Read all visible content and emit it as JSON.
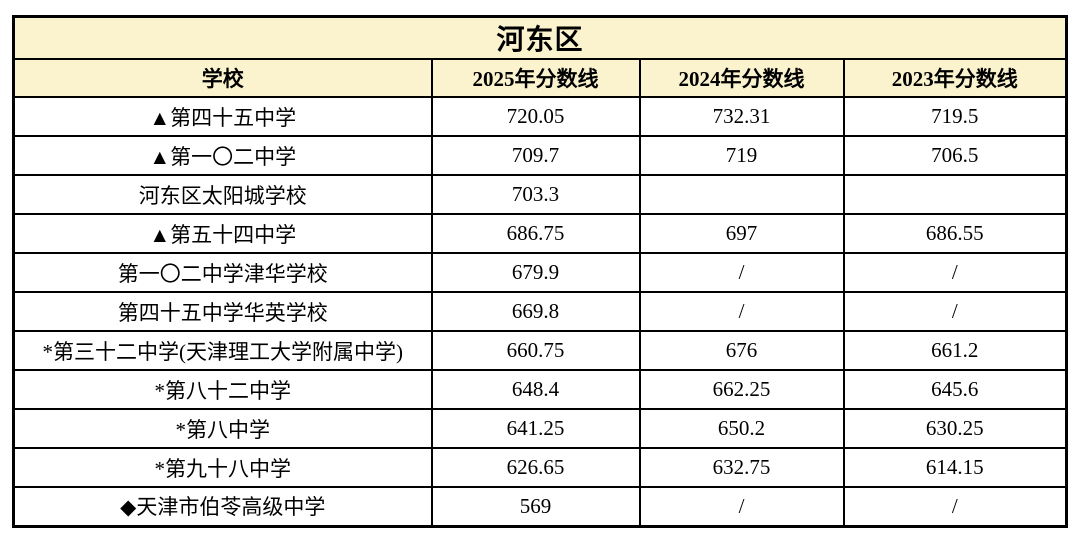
{
  "page": {
    "background": "#ffffff"
  },
  "table": {
    "title": "河东区",
    "header_bg": "#FBF3CD",
    "border_color": "#000000",
    "columns": [
      "学校",
      "2025年分数线",
      "2024年分数线",
      "2023年分数线"
    ],
    "rows": [
      {
        "school": "▲第四十五中学",
        "y2025": "720.05",
        "y2024": "732.31",
        "y2023": "719.5"
      },
      {
        "school": "▲第一〇二中学",
        "y2025": "709.7",
        "y2024": "719",
        "y2023": "706.5"
      },
      {
        "school": "河东区太阳城学校",
        "y2025": "703.3",
        "y2024": "",
        "y2023": ""
      },
      {
        "school": "▲第五十四中学",
        "y2025": "686.75",
        "y2024": "697",
        "y2023": "686.55"
      },
      {
        "school": "第一〇二中学津华学校",
        "y2025": "679.9",
        "y2024": "/",
        "y2023": "/"
      },
      {
        "school": "第四十五中学华英学校",
        "y2025": "669.8",
        "y2024": "/",
        "y2023": "/"
      },
      {
        "school": "*第三十二中学(天津理工大学附属中学)",
        "y2025": "660.75",
        "y2024": "676",
        "y2023": "661.2"
      },
      {
        "school": "*第八十二中学",
        "y2025": "648.4",
        "y2024": "662.25",
        "y2023": "645.6"
      },
      {
        "school": "*第八中学",
        "y2025": "641.25",
        "y2024": "650.2",
        "y2023": "630.25"
      },
      {
        "school": "*第九十八中学",
        "y2025": "626.65",
        "y2024": "632.75",
        "y2023": "614.15"
      },
      {
        "school": "◆天津市伯苓高级中学",
        "y2025": "569",
        "y2024": "/",
        "y2023": "/"
      }
    ]
  },
  "chart_data": {
    "type": "table",
    "title": "河东区",
    "columns": [
      "学校",
      "2025年分数线",
      "2024年分数线",
      "2023年分数线"
    ],
    "rows": [
      [
        "▲第四十五中学",
        "720.05",
        "732.31",
        "719.5"
      ],
      [
        "▲第一〇二中学",
        "709.7",
        "719",
        "706.5"
      ],
      [
        "河东区太阳城学校",
        "703.3",
        "",
        ""
      ],
      [
        "▲第五十四中学",
        "686.75",
        "697",
        "686.55"
      ],
      [
        "第一〇二中学津华学校",
        "679.9",
        "/",
        "/"
      ],
      [
        "第四十五中学华英学校",
        "669.8",
        "/",
        "/"
      ],
      [
        "*第三十二中学(天津理工大学附属中学)",
        "660.75",
        "676",
        "661.2"
      ],
      [
        "*第八十二中学",
        "648.4",
        "662.25",
        "645.6"
      ],
      [
        "*第八中学",
        "641.25",
        "650.2",
        "630.25"
      ],
      [
        "*第九十八中学",
        "626.65",
        "632.75",
        "614.15"
      ],
      [
        "◆天津市伯苓高级中学",
        "569",
        "/",
        "/"
      ]
    ]
  }
}
